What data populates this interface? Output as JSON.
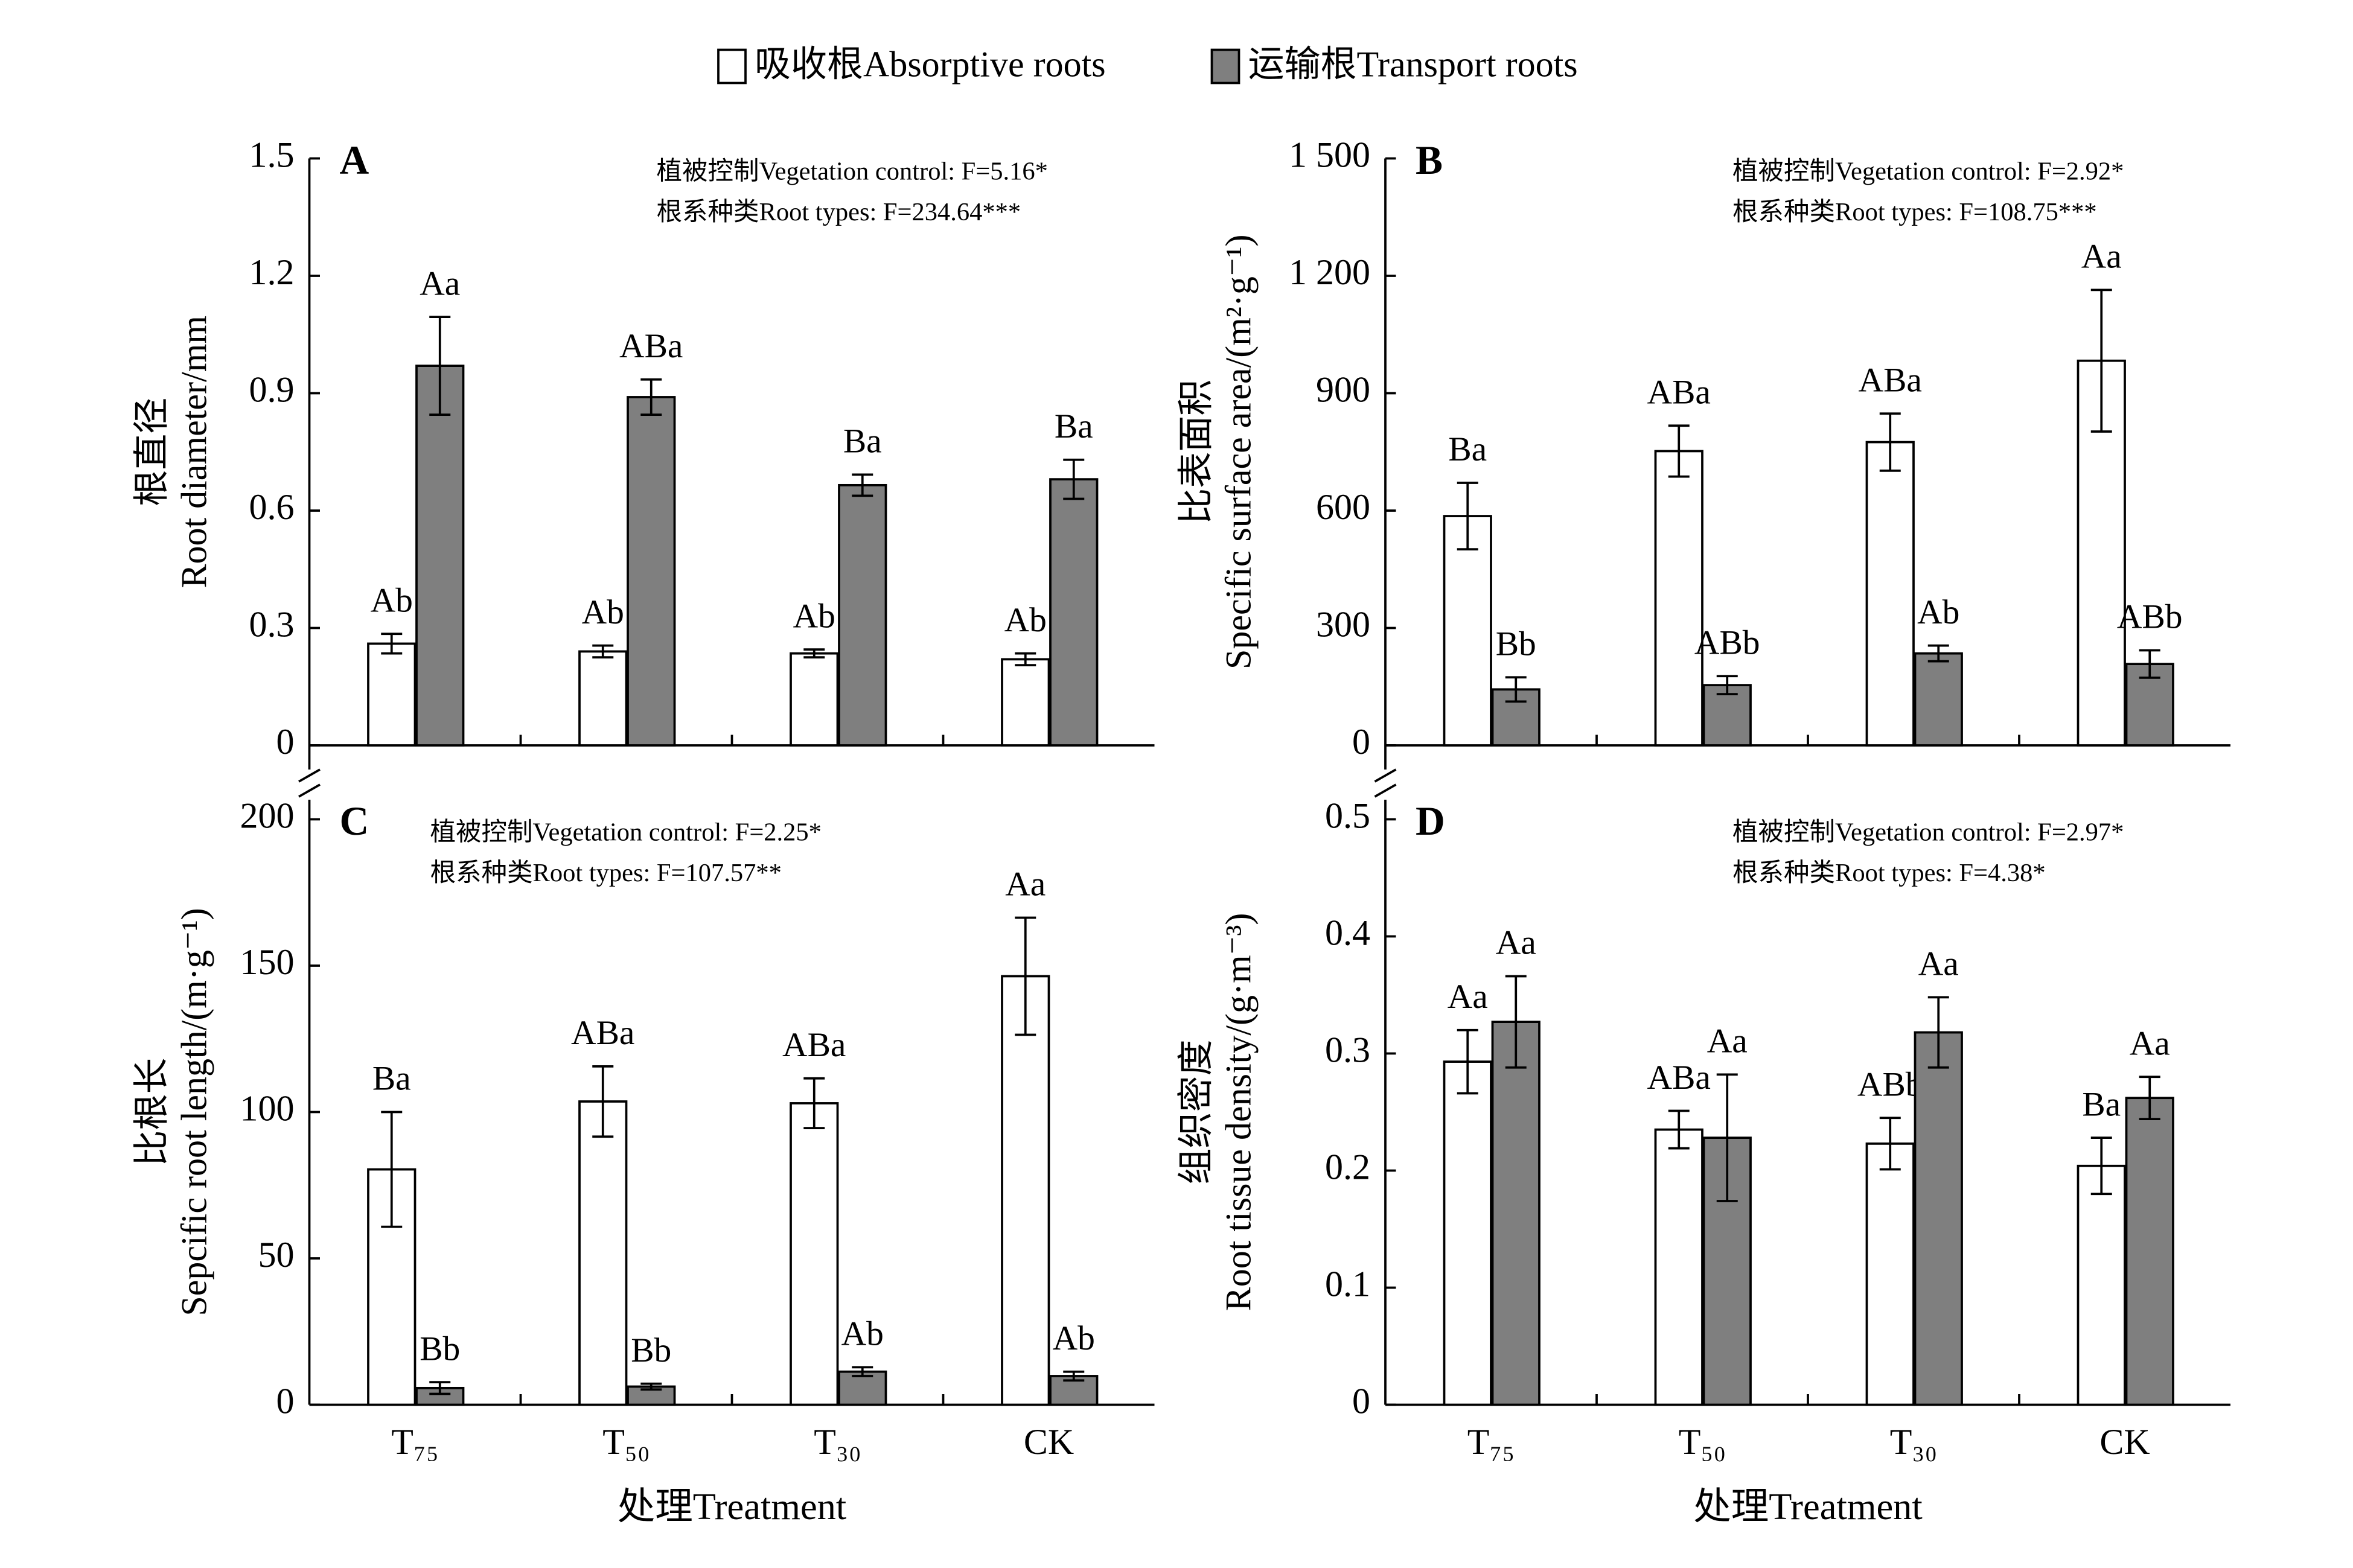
{
  "chart_data": [
    {
      "type": "bar",
      "panel": "A",
      "annotations": [
        "植被控制Vegetation control: F=5.16*",
        "根系种类Root types: F=234.64***"
      ],
      "y_label": [
        "根直径",
        "Root diameter/mm"
      ],
      "categories": [
        null,
        null,
        null,
        null
      ],
      "ylim": [
        0,
        1.5
      ],
      "yticks": [
        0,
        0.3,
        0.6,
        0.9,
        1.2,
        1.5
      ],
      "series": [
        {
          "name": "吸收根Absorptive roots",
          "color": "#ffffff",
          "values": [
            0.26,
            0.24,
            0.235,
            0.22
          ],
          "errors": [
            0.025,
            0.015,
            0.01,
            0.015
          ],
          "labels": [
            "Ab",
            "Ab",
            "Ab",
            "Ab"
          ]
        },
        {
          "name": "运输根Transport roots",
          "color": "#7f7f7f",
          "values": [
            0.97,
            0.89,
            0.665,
            0.68
          ],
          "errors": [
            0.125,
            0.045,
            0.027,
            0.05
          ],
          "labels": [
            "Aa",
            "ABa",
            "Ba",
            "Ba"
          ]
        }
      ]
    },
    {
      "type": "bar",
      "panel": "B",
      "annotations": [
        "植被控制Vegetation control: F=2.92*",
        "根系种类Root types: F=108.75***"
      ],
      "y_label": [
        "比表面积",
        "Specific surface area/(m²·g⁻¹)"
      ],
      "categories": [
        null,
        null,
        null,
        null
      ],
      "ylim": [
        0,
        1500
      ],
      "yticks": [
        0,
        300,
        600,
        900,
        {
          "value": 1200,
          "label": "1 200"
        },
        {
          "value": 1500,
          "label": "1 500"
        }
      ],
      "series": [
        {
          "color": "#ffffff",
          "values": [
            586,
            752,
            775,
            983
          ],
          "errors": [
            85,
            65,
            73,
            181
          ],
          "labels": [
            "Ba",
            "ABa",
            "ABa",
            "Aa"
          ]
        },
        {
          "color": "#7f7f7f",
          "values": [
            143,
            154,
            235,
            208
          ],
          "errors": [
            31,
            23,
            20,
            35
          ],
          "labels": [
            "Bb",
            "ABb",
            "Ab",
            "ABb"
          ]
        }
      ]
    },
    {
      "type": "bar",
      "panel": "C",
      "annotations": [
        "植被控制Vegetation control: F=2.25*",
        "根系种类Root types: F=107.57**"
      ],
      "y_label": [
        "比根长",
        "Sepcific root length/(m·g⁻¹)"
      ],
      "x_label": "处理Treatment",
      "categories": [
        "T₇₅",
        "T₅₀",
        "T₃₀",
        "CK"
      ],
      "ylim": [
        0,
        200
      ],
      "yticks": [
        0,
        50,
        100,
        150,
        200
      ],
      "series": [
        {
          "color": "#ffffff",
          "values": [
            80.4,
            103.6,
            103,
            146.4
          ],
          "errors": [
            19.6,
            12,
            8.5,
            20
          ],
          "labels": [
            "Ba",
            "ABa",
            "ABa",
            "Aa"
          ]
        },
        {
          "color": "#7f7f7f",
          "values": [
            5.7,
            6.2,
            11.3,
            9.8
          ],
          "errors": [
            2,
            1,
            1.5,
            1.5
          ],
          "labels": [
            "Bb",
            "Bb",
            "Ab",
            "Ab"
          ]
        }
      ]
    },
    {
      "type": "bar",
      "panel": "D",
      "annotations": [
        "植被控制Vegetation control: F=2.97*",
        "根系种类Root types: F=4.38*"
      ],
      "y_label": [
        "组织密度",
        "Root tissue density/(g·m⁻³)"
      ],
      "x_label": "处理Treatment",
      "categories": [
        "T₇₅",
        "T₅₀",
        "T₃₀",
        "CK"
      ],
      "ylim": [
        0,
        0.5
      ],
      "yticks": [
        0,
        0.1,
        0.2,
        0.3,
        0.4,
        0.5
      ],
      "series": [
        {
          "color": "#ffffff",
          "values": [
            0.293,
            0.235,
            0.223,
            0.204
          ],
          "errors": [
            0.027,
            0.016,
            0.022,
            0.024
          ],
          "labels": [
            "Aa",
            "ABa",
            "ABb",
            "Ba"
          ]
        },
        {
          "color": "#7f7f7f",
          "values": [
            0.327,
            0.228,
            0.318,
            0.262
          ],
          "errors": [
            0.039,
            0.054,
            0.03,
            0.018
          ],
          "labels": [
            "Aa",
            "Aa",
            "Aa",
            "Aa"
          ]
        }
      ]
    }
  ]
}
